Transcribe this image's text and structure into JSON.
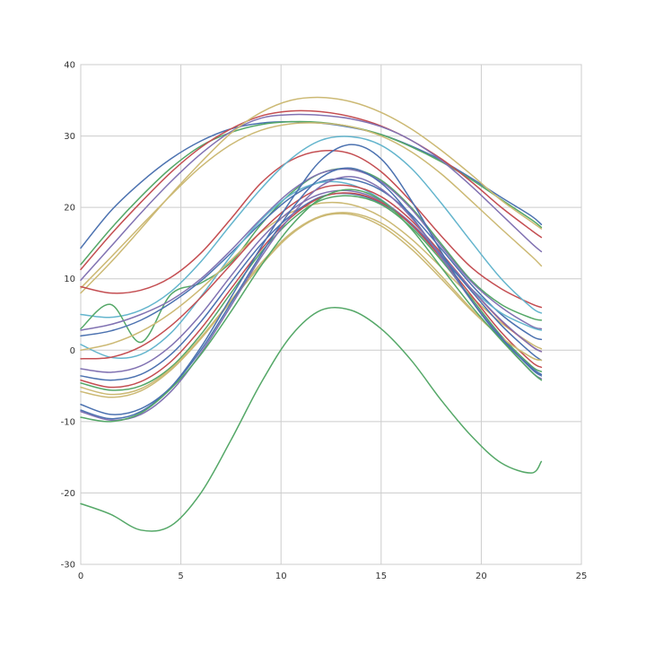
{
  "chart_data": {
    "type": "line",
    "title": "",
    "xlabel": "",
    "ylabel": "",
    "xlim": [
      0,
      25
    ],
    "ylim": [
      -30,
      40
    ],
    "xticks": [
      0,
      5,
      10,
      15,
      20,
      25
    ],
    "yticks": [
      -30,
      -20,
      -10,
      0,
      10,
      20,
      30,
      40
    ],
    "grid": true,
    "legend": "none",
    "x": [
      0,
      1.5,
      3,
      4.5,
      6,
      7.5,
      9,
      10.5,
      12,
      13.5,
      15,
      16.5,
      18,
      19.5,
      21,
      22.5,
      23
    ],
    "series": [
      {
        "color": "#4c72b0",
        "values": [
          14.3,
          19.5,
          23.5,
          26.8,
          29.3,
          31.0,
          31.8,
          32.0,
          31.8,
          31.2,
          30.2,
          28.6,
          26.6,
          24.1,
          21.4,
          18.8,
          17.6
        ]
      },
      {
        "color": "#55a868",
        "values": [
          12.0,
          17.0,
          21.5,
          25.5,
          28.6,
          30.5,
          31.6,
          32.0,
          31.9,
          31.3,
          30.2,
          28.5,
          26.4,
          23.9,
          21.1,
          18.3,
          17.2
        ]
      },
      {
        "color": "#c44e52",
        "values": [
          11.3,
          16.2,
          20.7,
          24.9,
          28.4,
          31.0,
          32.8,
          33.5,
          33.4,
          32.7,
          31.4,
          29.4,
          26.8,
          23.6,
          20.0,
          16.8,
          15.8
        ]
      },
      {
        "color": "#8172b2",
        "values": [
          9.8,
          14.5,
          19.2,
          23.6,
          27.5,
          30.6,
          32.5,
          33.0,
          32.9,
          32.4,
          31.3,
          29.4,
          26.6,
          23.0,
          19.0,
          15.0,
          13.8
        ]
      },
      {
        "color": "#ccb974",
        "values": [
          8.0,
          12.3,
          17.0,
          21.8,
          26.3,
          30.4,
          33.3,
          35.0,
          35.4,
          34.8,
          33.3,
          31.0,
          28.0,
          24.6,
          21.0,
          18.0,
          17.0
        ]
      },
      {
        "color": "#ccb974",
        "values": [
          8.7,
          13.0,
          17.4,
          21.7,
          25.7,
          28.8,
          30.8,
          31.7,
          31.8,
          31.3,
          30.0,
          27.8,
          24.7,
          20.9,
          17.0,
          13.2,
          11.8
        ]
      },
      {
        "color": "#c44e52",
        "values": [
          8.9,
          8.0,
          8.4,
          10.2,
          13.6,
          18.4,
          23.4,
          26.6,
          27.9,
          27.5,
          25.0,
          20.8,
          16.0,
          11.6,
          8.6,
          6.5,
          6.0
        ]
      },
      {
        "color": "#64b5cd",
        "values": [
          5.0,
          4.6,
          5.6,
          8.2,
          12.4,
          17.6,
          22.6,
          26.8,
          29.4,
          29.9,
          28.7,
          25.5,
          20.6,
          15.2,
          10.0,
          6.0,
          5.2
        ]
      },
      {
        "color": "#55a868",
        "values": [
          3.0,
          6.4,
          1.1,
          7.8,
          9.4,
          12.3,
          17.6,
          22.0,
          24.8,
          25.4,
          23.8,
          20.0,
          14.9,
          9.8,
          6.4,
          4.5,
          4.2
        ]
      },
      {
        "color": "#8172b2",
        "values": [
          2.8,
          3.6,
          5.0,
          7.0,
          10.0,
          14.0,
          18.4,
          22.3,
          24.8,
          25.3,
          23.6,
          19.8,
          14.6,
          9.6,
          6.0,
          3.4,
          3.0
        ]
      },
      {
        "color": "#4c72b0",
        "values": [
          2.0,
          2.7,
          4.2,
          6.6,
          9.7,
          13.6,
          17.8,
          21.4,
          23.6,
          23.9,
          22.4,
          19.0,
          14.2,
          9.2,
          5.0,
          2.0,
          1.5
        ]
      },
      {
        "color": "#64b5cd",
        "values": [
          0.8,
          -1.0,
          -0.6,
          2.4,
          7.5,
          13.2,
          18.2,
          21.8,
          23.5,
          23.2,
          21.1,
          17.5,
          13.0,
          8.6,
          5.2,
          3.2,
          2.8
        ]
      },
      {
        "color": "#ccb974",
        "values": [
          0.0,
          0.9,
          2.6,
          5.2,
          8.6,
          12.6,
          16.5,
          19.3,
          20.6,
          20.4,
          18.7,
          15.6,
          11.6,
          7.5,
          3.8,
          0.9,
          0.2
        ]
      },
      {
        "color": "#c44e52",
        "values": [
          -1.2,
          -1.0,
          0.5,
          3.4,
          7.4,
          12.0,
          16.6,
          20.3,
          22.7,
          23.0,
          21.5,
          18.2,
          13.6,
          8.6,
          4.1,
          0.6,
          -0.2
        ]
      },
      {
        "color": "#8172b2",
        "values": [
          -2.6,
          -3.1,
          -2.2,
          0.6,
          5.0,
          10.4,
          15.6,
          19.6,
          21.9,
          22.3,
          20.9,
          17.8,
          13.4,
          8.6,
          4.2,
          0.6,
          -0.2
        ]
      },
      {
        "color": "#4c72b0",
        "values": [
          -3.6,
          -4.2,
          -3.4,
          -0.6,
          4.0,
          9.5,
          14.8,
          18.9,
          21.5,
          21.9,
          20.6,
          17.6,
          13.2,
          8.3,
          3.5,
          -0.4,
          -1.4
        ]
      },
      {
        "color": "#c44e52",
        "values": [
          -4.2,
          -5.2,
          -4.4,
          -1.6,
          3.0,
          8.6,
          14.1,
          18.6,
          21.4,
          22.0,
          20.7,
          17.6,
          12.9,
          7.7,
          2.5,
          -1.6,
          -2.4
        ]
      },
      {
        "color": "#55a868",
        "values": [
          -4.6,
          -5.6,
          -5.0,
          -2.4,
          2.2,
          8.0,
          13.7,
          18.2,
          21.0,
          21.6,
          20.4,
          17.2,
          12.6,
          7.3,
          2.0,
          -2.2,
          -3.0
        ]
      },
      {
        "color": "#ccb974",
        "values": [
          -5.8,
          -6.6,
          -5.7,
          -2.8,
          1.6,
          6.8,
          11.9,
          16.2,
          18.7,
          19.0,
          17.4,
          14.2,
          10.0,
          5.6,
          1.8,
          -1.0,
          -1.4
        ]
      },
      {
        "color": "#ccb974",
        "values": [
          -5.2,
          -6.2,
          -5.4,
          -2.6,
          1.8,
          7.0,
          12.2,
          16.4,
          18.8,
          19.2,
          17.8,
          14.7,
          10.4,
          5.8,
          1.8,
          -1.0,
          -1.4
        ]
      },
      {
        "color": "#4c72b0",
        "values": [
          -7.6,
          -9.0,
          -8.2,
          -5.2,
          0.0,
          6.6,
          13.4,
          19.6,
          24.2,
          25.5,
          23.4,
          18.8,
          13.0,
          7.0,
          1.8,
          -2.6,
          -3.6
        ]
      },
      {
        "color": "#8172b2",
        "values": [
          -8.6,
          -9.8,
          -9.0,
          -5.8,
          -0.4,
          6.2,
          13.0,
          18.8,
          23.0,
          24.3,
          22.6,
          18.6,
          13.0,
          7.0,
          1.6,
          -3.0,
          -4.0
        ]
      },
      {
        "color": "#4c72b0",
        "values": [
          -8.4,
          -9.6,
          -8.6,
          -5.2,
          0.4,
          7.4,
          14.4,
          21.0,
          26.6,
          28.8,
          26.8,
          21.0,
          13.8,
          7.0,
          1.6,
          -2.4,
          -3.4
        ]
      },
      {
        "color": "#55a868",
        "values": [
          -9.4,
          -10.0,
          -8.8,
          -5.4,
          -0.6,
          5.4,
          11.8,
          17.4,
          21.3,
          22.5,
          21.0,
          17.0,
          11.6,
          6.2,
          1.4,
          -3.0,
          -4.2
        ]
      },
      {
        "color": "#55a868",
        "values": [
          -21.5,
          -23.0,
          -25.2,
          -24.6,
          -20.0,
          -12.6,
          -4.6,
          2.0,
          5.6,
          5.6,
          3.0,
          -1.4,
          -7.0,
          -12.0,
          -15.8,
          -17.2,
          -15.6
        ]
      }
    ]
  }
}
